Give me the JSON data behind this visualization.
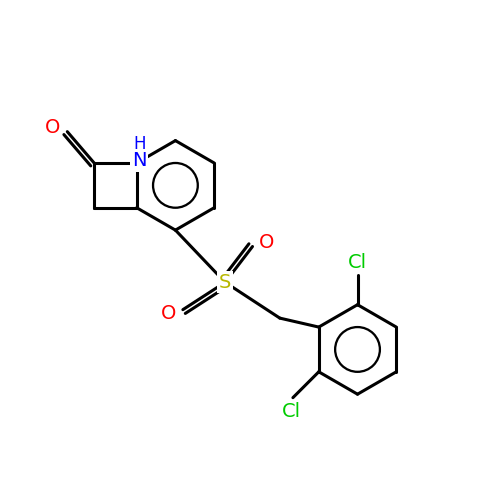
{
  "background_color": "#ffffff",
  "bond_color": "#000000",
  "atom_colors": {
    "O": "#ff0000",
    "N": "#0000ff",
    "S": "#b8b800",
    "Cl": "#00cc00",
    "C": "#000000"
  },
  "line_width": 2.2,
  "figsize": [
    5.0,
    5.0
  ],
  "dpi": 100
}
